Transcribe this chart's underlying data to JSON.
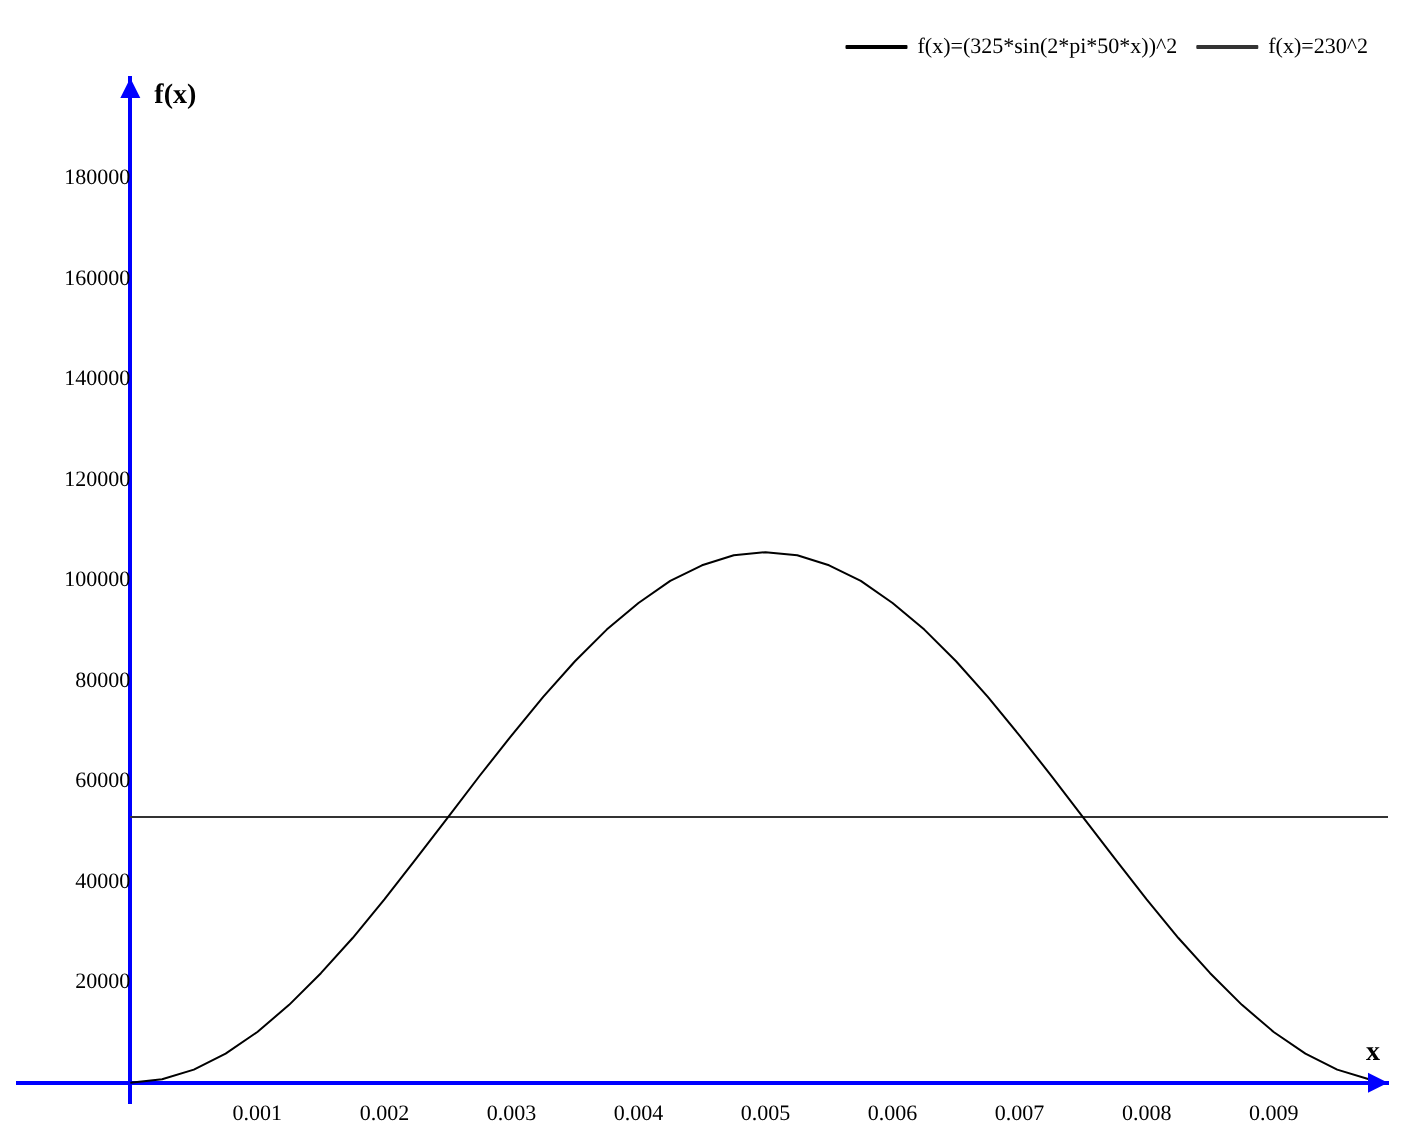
{
  "chart_data": {
    "type": "line",
    "xlabel": "x",
    "ylabel": "f(x)",
    "xlim": [
      -0.0009,
      0.0099
    ],
    "ylim": [
      -4000,
      200000
    ],
    "xticks": [
      0.001,
      0.002,
      0.003,
      0.004,
      0.005,
      0.006,
      0.007,
      0.008,
      0.009
    ],
    "yticks": [
      20000,
      40000,
      60000,
      80000,
      100000,
      120000,
      140000,
      160000,
      180000
    ],
    "grid": false,
    "legend": "top right",
    "marker": "none",
    "line_style": "solid",
    "series": [
      {
        "name": "f(x)=(325*sin(2*pi*50*x))^2",
        "color": "#000000",
        "x": [
          0,
          0.00025,
          0.0005,
          0.00075,
          0.001,
          0.00125,
          0.0015,
          0.00175,
          0.002,
          0.00225,
          0.0025,
          0.00275,
          0.003,
          0.00325,
          0.0035,
          0.00375,
          0.004,
          0.00425,
          0.0045,
          0.00475,
          0.005,
          0.00525,
          0.0055,
          0.00575,
          0.006,
          0.00625,
          0.0065,
          0.00675,
          0.007,
          0.00725,
          0.0075,
          0.00775,
          0.008,
          0.00825,
          0.0085,
          0.00875,
          0.009,
          0.00925,
          0.0095,
          0.00975
        ],
        "values": [
          0,
          700,
          2600,
          5800,
          10100,
          15500,
          21800,
          28800,
          36500,
          44600,
          52800,
          61100,
          69100,
          76800,
          83900,
          90200,
          95500,
          99900,
          103000,
          105000,
          105600,
          105000,
          103000,
          99900,
          95500,
          90200,
          83900,
          76800,
          69100,
          61100,
          52800,
          44600,
          36500,
          28800,
          21800,
          15500,
          10100,
          5800,
          2600,
          700
        ]
      },
      {
        "name": "f(x)=230^2",
        "color": "#333333",
        "x": [
          0,
          0.0099
        ],
        "values": [
          52900,
          52900
        ]
      }
    ]
  }
}
